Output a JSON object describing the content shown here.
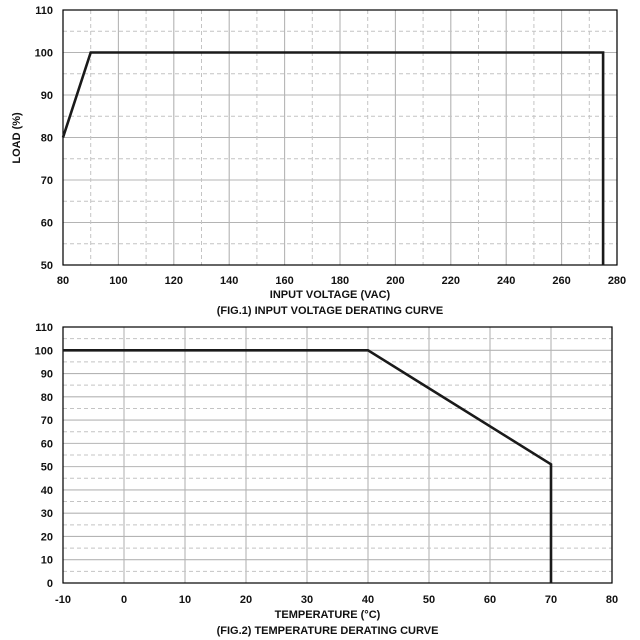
{
  "chart_data": [
    {
      "type": "line",
      "caption": "(FIG.1) INPUT VOLTAGE DERATING CURVE",
      "xlabel": "INPUT VOLTAGE (VAC)",
      "ylabel": "LOAD (%)",
      "xlim": [
        80,
        280
      ],
      "ylim": [
        50,
        110
      ],
      "x_ticks": [
        "80",
        "100",
        "120",
        "140",
        "160",
        "180",
        "200",
        "220",
        "240",
        "260",
        "280"
      ],
      "y_ticks": [
        "50",
        "60",
        "70",
        "80",
        "90",
        "100",
        "110"
      ],
      "grid": true,
      "x": [
        80,
        90,
        275,
        275
      ],
      "y": [
        80,
        100,
        100,
        50
      ],
      "color": "#1a1a1a"
    },
    {
      "type": "line",
      "caption": "(FIG.2) TEMPERATURE DERATING CURVE",
      "xlabel": "TEMPERATURE (°C)",
      "ylabel": "",
      "xlim": [
        -10,
        80
      ],
      "ylim": [
        0,
        110
      ],
      "x_ticks": [
        "-10",
        "0",
        "10",
        "20",
        "30",
        "40",
        "50",
        "60",
        "70",
        "80"
      ],
      "y_ticks": [
        "0",
        "10",
        "20",
        "30",
        "40",
        "50",
        "60",
        "70",
        "80",
        "90",
        "100",
        "110"
      ],
      "grid": true,
      "x": [
        -10,
        40,
        70,
        70
      ],
      "y": [
        100,
        100,
        51,
        0
      ],
      "color": "#1a1a1a"
    }
  ]
}
